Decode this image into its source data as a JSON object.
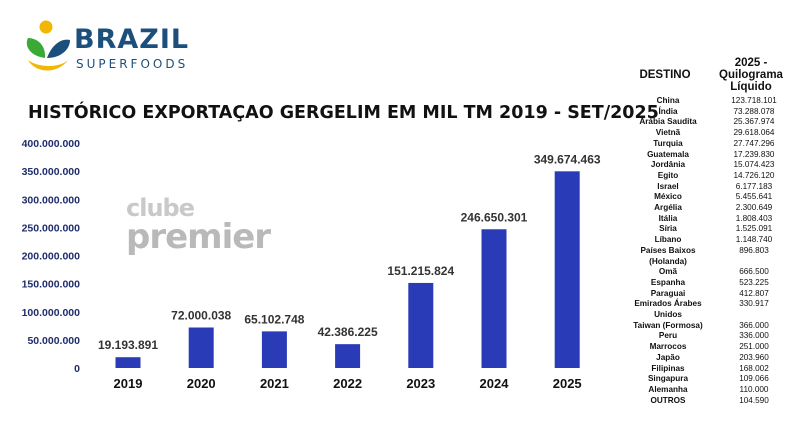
{
  "brand": {
    "name": "BRAZIL",
    "tagline": "SUPERFOODS",
    "colors": {
      "blue": "#1d4f7c",
      "green": "#3aa935",
      "yellow": "#f2b705"
    }
  },
  "watermark": {
    "line1": "clube",
    "line2": "premier"
  },
  "chart_data": {
    "type": "bar",
    "title": "HISTÓRICO EXPORTAÇAO GERGELIM EM MIL TM 2019 - SET/2025",
    "categories": [
      "2019",
      "2020",
      "2021",
      "2022",
      "2023",
      "2024",
      "2025"
    ],
    "values": [
      19193891,
      72000038,
      65102748,
      42386225,
      151215824,
      246650301,
      349674463
    ],
    "data_labels": [
      "19.193.891",
      "72.000.038",
      "65.102.748",
      "42.386.225",
      "151.215.824",
      "246.650.301",
      "349.674.463"
    ],
    "ylim": [
      0,
      400000000
    ],
    "yticks": [
      0,
      50000000,
      100000000,
      150000000,
      200000000,
      250000000,
      300000000,
      350000000,
      400000000
    ],
    "ytick_labels": [
      "0",
      "50.000.000",
      "100.000.000",
      "150.000.000",
      "200.000.000",
      "250.000.000",
      "300.000.000",
      "350.000.000",
      "400.000.000"
    ],
    "bar_color": "#2a3bb8",
    "grid": false,
    "xlabel": "",
    "ylabel": ""
  },
  "table": {
    "header_destino": "DESTINO",
    "header_valor": "2025 - Quilograma Líquido",
    "rows": [
      {
        "destino": "China",
        "valor": "123.718.101"
      },
      {
        "destino": "Índia",
        "valor": "73.288.078"
      },
      {
        "destino": "Arábia Saudita",
        "valor": "25.367.974"
      },
      {
        "destino": "Vietnã",
        "valor": "29.618.064"
      },
      {
        "destino": "Turquia",
        "valor": "27.747.296"
      },
      {
        "destino": "Guatemala",
        "valor": "17.239.830"
      },
      {
        "destino": "Jordânia",
        "valor": "15.074.423"
      },
      {
        "destino": "Egito",
        "valor": "14.726.120"
      },
      {
        "destino": "Israel",
        "valor": "6.177.183"
      },
      {
        "destino": "México",
        "valor": "5.455.641"
      },
      {
        "destino": "Argélia",
        "valor": "2.300.649"
      },
      {
        "destino": "Itália",
        "valor": "1.808.403"
      },
      {
        "destino": "Síria",
        "valor": "1.525.091"
      },
      {
        "destino": "Líbano",
        "valor": "1.148.740"
      },
      {
        "destino": "Países Baixos (Holanda)",
        "valor": "896.803"
      },
      {
        "destino": "Omã",
        "valor": "666.500"
      },
      {
        "destino": "Espanha",
        "valor": "523.225"
      },
      {
        "destino": "Paraguai",
        "valor": "412.807"
      },
      {
        "destino": "Emirados Árabes Unidos",
        "valor": "330.917"
      },
      {
        "destino": "Taiwan (Formosa)",
        "valor": "366.000"
      },
      {
        "destino": "Peru",
        "valor": "336.000"
      },
      {
        "destino": "Marrocos",
        "valor": "251.000"
      },
      {
        "destino": "Japão",
        "valor": "203.960"
      },
      {
        "destino": "Filipinas",
        "valor": "168.002"
      },
      {
        "destino": "Singapura",
        "valor": "109.066"
      },
      {
        "destino": "Alemanha",
        "valor": "110.000"
      },
      {
        "destino": "OUTROS",
        "valor": "104.590"
      }
    ]
  }
}
